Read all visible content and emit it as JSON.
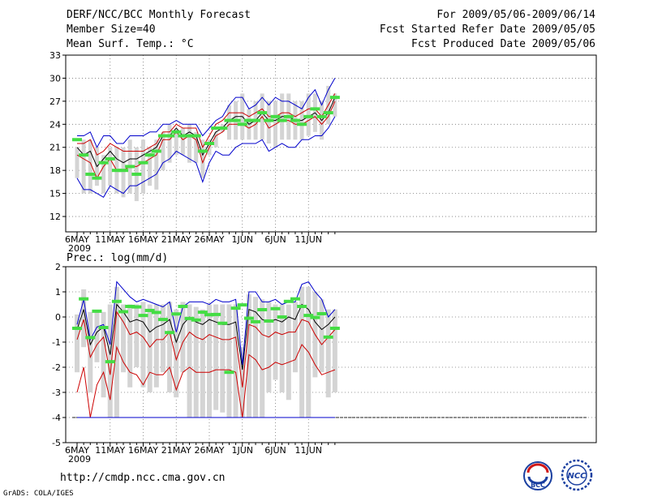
{
  "header": {
    "title": "DERF/NCC/BCC Monthly Forecast",
    "member_size": "Member Size=40",
    "variable_top": "Mean Surf. Temp.: °C",
    "period": "For 2009/05/06-2009/06/14",
    "start_date": "Fcst Started Refer Date 2009/05/05",
    "produced_date": "Fcst Produced Date 2009/05/06",
    "variable_bottom": "Prec.: log(mm/d)",
    "url": "http://cmdp.ncc.cma.gov.cn",
    "credit": "GrADS: COLA/IGES",
    "logo_bcc": "BCC",
    "logo_ncc": "NCC"
  },
  "chart_data": [
    {
      "type": "line",
      "title": "Mean Surf. Temp.: °C",
      "x_tick_labels": [
        "6MAY",
        "11MAY",
        "16MAY",
        "21MAY",
        "26MAY",
        "1JUN",
        "6JUN",
        "11JUN"
      ],
      "x_sublabel": "2009",
      "days": 40,
      "ylim": [
        10,
        33
      ],
      "y_ticks": [
        12,
        15,
        18,
        21,
        24,
        27,
        30,
        33
      ],
      "grid": true,
      "series": [
        {
          "name": "ensemble mean",
          "color": "#000000",
          "values": [
            21.0,
            20.0,
            20.5,
            18.5,
            19.5,
            20.5,
            19.5,
            19.0,
            19.5,
            19.5,
            20.0,
            20.5,
            21.0,
            22.5,
            22.5,
            23.5,
            22.5,
            23.0,
            22.5,
            20.0,
            21.5,
            23.0,
            23.5,
            24.5,
            25.0,
            25.0,
            24.0,
            24.5,
            25.5,
            24.5,
            24.5,
            25.0,
            25.0,
            24.5,
            24.5,
            25.0,
            25.5,
            24.5,
            25.5,
            27.5
          ]
        },
        {
          "name": "upper red",
          "color": "#cc0000",
          "values": [
            21.5,
            21.5,
            22.0,
            20.0,
            20.5,
            21.5,
            21.0,
            20.5,
            20.5,
            20.5,
            20.5,
            21.0,
            21.5,
            23.0,
            23.0,
            24.0,
            23.5,
            23.5,
            23.5,
            21.0,
            22.5,
            24.0,
            24.5,
            25.5,
            25.5,
            25.5,
            25.0,
            25.5,
            26.0,
            25.0,
            25.0,
            25.5,
            25.5,
            25.0,
            25.5,
            26.0,
            26.0,
            25.0,
            26.5,
            28.0
          ]
        },
        {
          "name": "lower red",
          "color": "#cc0000",
          "values": [
            20.0,
            19.5,
            19.0,
            17.0,
            18.5,
            19.5,
            18.0,
            18.0,
            18.5,
            18.5,
            19.0,
            19.5,
            20.0,
            22.0,
            22.0,
            23.0,
            22.0,
            22.5,
            22.0,
            19.0,
            21.0,
            22.5,
            23.0,
            24.0,
            24.0,
            24.0,
            23.5,
            24.0,
            25.0,
            23.5,
            24.0,
            24.5,
            24.5,
            24.0,
            24.0,
            24.5,
            25.0,
            24.0,
            25.0,
            27.0
          ]
        },
        {
          "name": "upper blue",
          "color": "#0000cc",
          "values": [
            22.5,
            22.5,
            23.0,
            21.0,
            22.5,
            22.5,
            21.5,
            21.5,
            22.5,
            22.5,
            22.5,
            23.0,
            23.0,
            24.0,
            24.0,
            24.5,
            24.0,
            24.0,
            24.0,
            22.5,
            23.5,
            24.5,
            25.0,
            26.5,
            27.5,
            27.5,
            26.0,
            26.5,
            27.5,
            26.5,
            27.5,
            27.0,
            27.0,
            26.5,
            26.0,
            27.5,
            28.5,
            26.5,
            28.5,
            30.0
          ]
        },
        {
          "name": "lower blue",
          "color": "#0000cc",
          "values": [
            17.0,
            15.5,
            15.5,
            15.0,
            14.5,
            16.0,
            15.5,
            15.0,
            16.0,
            16.0,
            16.5,
            17.0,
            17.5,
            19.0,
            19.5,
            20.5,
            20.0,
            19.5,
            19.0,
            16.5,
            19.0,
            20.5,
            20.0,
            20.0,
            21.0,
            21.5,
            21.5,
            21.5,
            22.0,
            20.5,
            21.0,
            21.5,
            21.0,
            21.0,
            22.0,
            22.0,
            22.5,
            22.5,
            23.5,
            25.0
          ]
        }
      ],
      "box_ranges": [
        [
          21,
          17
        ],
        [
          22,
          15
        ],
        [
          22,
          15
        ],
        [
          21,
          16
        ],
        [
          20,
          15
        ],
        [
          21,
          16
        ],
        [
          21,
          15
        ],
        [
          21,
          14.5
        ],
        [
          22,
          15
        ],
        [
          21,
          14
        ],
        [
          22,
          15
        ],
        [
          21,
          16
        ],
        [
          22,
          15.5
        ],
        [
          23,
          18
        ],
        [
          24,
          19
        ],
        [
          23,
          20
        ],
        [
          23.5,
          20
        ],
        [
          24,
          19
        ],
        [
          23,
          19
        ],
        [
          22,
          17
        ],
        [
          22,
          20
        ],
        [
          23,
          21
        ],
        [
          24,
          23
        ],
        [
          26.5,
          22
        ],
        [
          27,
          22
        ],
        [
          28,
          22
        ],
        [
          26,
          22
        ],
        [
          27,
          22
        ],
        [
          28,
          22
        ],
        [
          27,
          21.5
        ],
        [
          27,
          21
        ],
        [
          28,
          22
        ],
        [
          28,
          22
        ],
        [
          27,
          22
        ],
        [
          27,
          22
        ],
        [
          28,
          22.5
        ],
        [
          28,
          23
        ],
        [
          27,
          22
        ],
        [
          29,
          24
        ],
        [
          28,
          25
        ]
      ],
      "observed": [
        22.0,
        20.0,
        17.5,
        17.0,
        19.0,
        19.5,
        18.0,
        18.0,
        18.5,
        17.5,
        19.0,
        20.0,
        20.5,
        22.5,
        22.5,
        23.0,
        22.5,
        22.5,
        22.5,
        20.5,
        21.5,
        23.5,
        23.5,
        24.5,
        24.5,
        24.0,
        24.5,
        24.5,
        25.5,
        24.5,
        25.0,
        24.5,
        25.0,
        24.5,
        24.0,
        25.0,
        26.0,
        25.0,
        25.5,
        27.5
      ]
    },
    {
      "type": "line",
      "title": "Prec.: log(mm/d)",
      "x_tick_labels": [
        "6MAY",
        "11MAY",
        "16MAY",
        "21MAY",
        "26MAY",
        "1JUN",
        "6JUN",
        "11JUN"
      ],
      "x_sublabel": "2009",
      "days": 40,
      "ylim": [
        -5,
        2
      ],
      "y_ticks": [
        -5,
        -4,
        -3,
        -2,
        -1,
        0,
        1,
        2
      ],
      "grid": true,
      "baseline": -4,
      "series": [
        {
          "name": "ensemble mean",
          "color": "#000000",
          "values": [
            -0.5,
            0.3,
            -1.1,
            -0.6,
            -0.4,
            -1.5,
            0.5,
            0.2,
            -0.2,
            -0.1,
            -0.2,
            -0.6,
            -0.4,
            -0.3,
            -0.1,
            -1.0,
            -0.3,
            0.0,
            -0.2,
            -0.3,
            -0.1,
            -0.2,
            -0.3,
            -0.3,
            -0.2,
            -2.1,
            0.3,
            0.2,
            -0.1,
            -0.2,
            -0.1,
            -0.2,
            0.0,
            -0.1,
            0.5,
            0.3,
            -0.2,
            -0.5,
            -0.3,
            0.0
          ]
        },
        {
          "name": "upper red",
          "color": "#cc0000",
          "values": [
            -0.9,
            -0.1,
            -1.6,
            -1.1,
            -0.8,
            -2.3,
            0.2,
            -0.2,
            -0.7,
            -0.6,
            -0.8,
            -1.2,
            -0.9,
            -0.9,
            -0.6,
            -1.7,
            -1.0,
            -0.6,
            -0.8,
            -0.9,
            -0.7,
            -0.8,
            -0.9,
            -0.9,
            -0.8,
            -2.8,
            -0.3,
            -0.4,
            -0.7,
            -0.8,
            -0.6,
            -0.7,
            -0.6,
            -0.6,
            -0.1,
            -0.2,
            -0.7,
            -1.1,
            -0.8,
            -0.5
          ]
        },
        {
          "name": "lower red",
          "color": "#cc0000",
          "values": [
            -3.0,
            -2.0,
            -4.0,
            -2.7,
            -2.2,
            -3.3,
            -1.2,
            -1.8,
            -2.2,
            -2.3,
            -2.7,
            -2.2,
            -2.3,
            -2.3,
            -2.0,
            -2.9,
            -2.2,
            -2.0,
            -2.2,
            -2.2,
            -2.2,
            -2.1,
            -2.1,
            -2.1,
            -2.2,
            -4.0,
            -1.5,
            -1.7,
            -2.1,
            -2.0,
            -1.8,
            -1.9,
            -1.8,
            -1.7,
            -1.1,
            -1.4,
            -1.9,
            -2.3,
            -2.2,
            -2.1
          ]
        },
        {
          "name": "upper blue",
          "color": "#0000cc",
          "values": [
            -0.3,
            0.7,
            -0.9,
            -0.4,
            -0.3,
            -1.1,
            1.4,
            1.1,
            0.8,
            0.6,
            0.7,
            0.6,
            0.5,
            0.4,
            0.6,
            -0.6,
            0.4,
            0.6,
            0.6,
            0.6,
            0.5,
            0.7,
            0.6,
            0.6,
            0.7,
            -1.9,
            1.0,
            1.0,
            0.6,
            0.6,
            0.7,
            0.5,
            0.6,
            0.6,
            1.3,
            1.4,
            1.0,
            0.7,
            0.0,
            0.3
          ]
        },
        {
          "name": "lower blue",
          "color": "#0000cc",
          "values": [
            -4.0,
            -4.0,
            -4.0,
            -4.0,
            -4.0,
            -4.0,
            -4.0,
            -4.0,
            -4.0,
            -4.0,
            -4.0,
            -4.0,
            -4.0,
            -4.0,
            -4.0,
            -4.0,
            -4.0,
            -4.0,
            -4.0,
            -4.0,
            -4.0,
            -4.0,
            -4.0,
            -4.0,
            -4.0,
            -4.0,
            -4.0,
            -4.0,
            -4.0,
            -4.0,
            -4.0,
            -4.0,
            -4.0,
            -4.0,
            -4.0,
            -4.0,
            -4.0,
            -4.0,
            -4.0,
            -4.0
          ]
        }
      ],
      "box_ranges": [
        [
          0.1,
          -2.2
        ],
        [
          1.1,
          -1.2
        ],
        [
          0.2,
          -3.0
        ],
        [
          0.2,
          -1.8
        ],
        [
          0.2,
          -3.2
        ],
        [
          0.5,
          -4.0
        ],
        [
          1.2,
          -4.0
        ],
        [
          0.5,
          -2.2
        ],
        [
          0.5,
          -2.8
        ],
        [
          0.5,
          -2.0
        ],
        [
          0.6,
          -2.8
        ],
        [
          0.5,
          -3.0
        ],
        [
          0.5,
          -2.8
        ],
        [
          0.5,
          -2.2
        ],
        [
          0.6,
          -3.0
        ],
        [
          0.3,
          -3.2
        ],
        [
          0.6,
          -2.2
        ],
        [
          0.5,
          -4.0
        ],
        [
          0.4,
          -4.0
        ],
        [
          0.3,
          -4.0
        ],
        [
          0.5,
          -4.0
        ],
        [
          0.5,
          -3.7
        ],
        [
          0.5,
          -3.8
        ],
        [
          0.5,
          -4.0
        ],
        [
          0.5,
          -4.0
        ],
        [
          -1.2,
          -4.0
        ],
        [
          0.9,
          -4.0
        ],
        [
          0.8,
          -4.0
        ],
        [
          0.7,
          -4.0
        ],
        [
          0.6,
          -3.0
        ],
        [
          0.5,
          -2.5
        ],
        [
          0.5,
          -3.0
        ],
        [
          0.5,
          -3.3
        ],
        [
          0.6,
          -2.2
        ],
        [
          1.2,
          -4.0
        ],
        [
          1.2,
          -4.0
        ],
        [
          1.0,
          -2.4
        ],
        [
          0.7,
          -2.2
        ],
        [
          0.3,
          -3.2
        ],
        [
          0.3,
          -3.0
        ]
      ],
      "observed": [
        -0.45,
        0.72,
        -0.82,
        0.23,
        -0.42,
        -1.78,
        0.62,
        0.21,
        0.42,
        0.4,
        0.06,
        0.26,
        0.18,
        -0.1,
        -0.62,
        0.12,
        0.42,
        -0.06,
        -0.12,
        0.19,
        0.09,
        0.1,
        -0.25,
        -2.2,
        0.35,
        0.48,
        -0.05,
        -0.19,
        0.29,
        -0.16,
        0.33,
        0.0,
        0.62,
        0.72,
        0.42,
        0.06,
        -0.02,
        0.13,
        -0.8,
        -0.45
      ]
    }
  ]
}
